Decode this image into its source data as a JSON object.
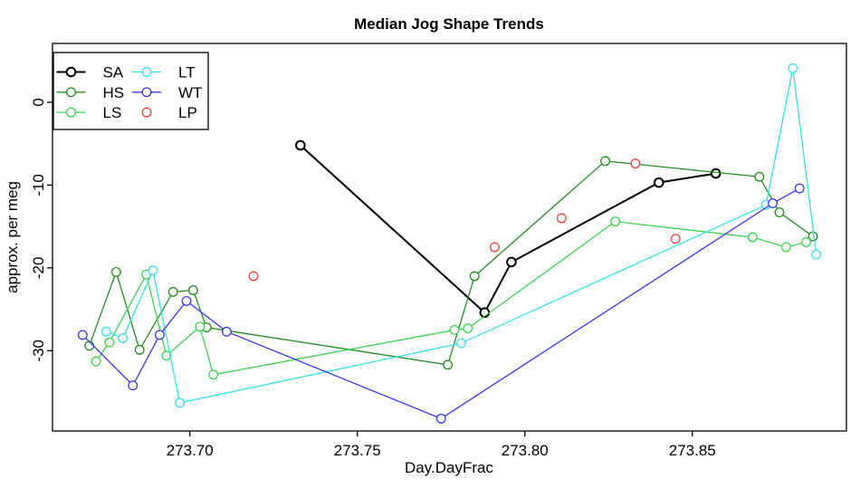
{
  "chart_data": {
    "type": "line",
    "title": "Median Jog Shape Trends",
    "xlabel": "Day.DayFrac",
    "ylabel": "approx. per meg",
    "xlim": [
      273.659,
      273.896
    ],
    "ylim": [
      -39.7,
      7.1
    ],
    "x_ticks": [
      273.7,
      273.75,
      273.8,
      273.85
    ],
    "x_tick_labels": [
      "273.70",
      "273.75",
      "273.80",
      "273.85"
    ],
    "y_ticks": [
      0,
      -10,
      -20,
      -30
    ],
    "y_tick_labels": [
      "0",
      "-10",
      "-20",
      "-30"
    ],
    "grid": false,
    "marker": "open-circle",
    "legend": {
      "position": "top-left",
      "columns": 2,
      "entries": [
        "SA",
        "HS",
        "LS",
        "LT",
        "WT",
        "LP"
      ]
    },
    "series": [
      {
        "name": "SA",
        "color": "#000000",
        "line": true,
        "line_width": 2,
        "points": [
          [
            273.733,
            -5.2
          ],
          [
            273.788,
            -25.4
          ],
          [
            273.796,
            -19.3
          ],
          [
            273.84,
            -9.7
          ],
          [
            273.857,
            -8.6
          ]
        ]
      },
      {
        "name": "HS",
        "color": "#228B22",
        "line": true,
        "line_width": 1.3,
        "points": [
          [
            273.67,
            -29.4
          ],
          [
            273.678,
            -20.5
          ],
          [
            273.685,
            -29.9
          ],
          [
            273.695,
            -22.9
          ],
          [
            273.701,
            -22.7
          ],
          [
            273.705,
            -27.2
          ],
          [
            273.777,
            -31.7
          ],
          [
            273.785,
            -21.0
          ],
          [
            273.824,
            -7.1
          ],
          [
            273.87,
            -9.0
          ],
          [
            273.876,
            -13.3
          ],
          [
            273.886,
            -16.2
          ]
        ]
      },
      {
        "name": "LS",
        "color": "#3BD34F",
        "line": true,
        "line_width": 1.3,
        "points": [
          [
            273.672,
            -31.3
          ],
          [
            273.676,
            -29.0
          ],
          [
            273.687,
            -20.8
          ],
          [
            273.693,
            -30.6
          ],
          [
            273.703,
            -27.1
          ],
          [
            273.707,
            -32.9
          ],
          [
            273.779,
            -27.5
          ],
          [
            273.783,
            -27.3
          ],
          [
            273.827,
            -14.4
          ],
          [
            273.868,
            -16.3
          ],
          [
            273.878,
            -17.5
          ],
          [
            273.884,
            -16.9
          ]
        ]
      },
      {
        "name": "LT",
        "color": "#35E0EA",
        "line": true,
        "line_width": 1.3,
        "points": [
          [
            273.675,
            -27.7
          ],
          [
            273.68,
            -28.5
          ],
          [
            273.689,
            -20.3
          ],
          [
            273.697,
            -36.3
          ],
          [
            273.781,
            -29.1
          ],
          [
            273.872,
            -12.4
          ],
          [
            273.88,
            4.1
          ],
          [
            273.887,
            -18.4
          ]
        ]
      },
      {
        "name": "WT",
        "color": "#3737F0",
        "line": true,
        "line_width": 1.3,
        "points": [
          [
            273.668,
            -28.1
          ],
          [
            273.683,
            -34.2
          ],
          [
            273.691,
            -28.1
          ],
          [
            273.699,
            -24.0
          ],
          [
            273.711,
            -27.7
          ],
          [
            273.775,
            -38.2
          ],
          [
            273.874,
            -12.2
          ],
          [
            273.882,
            -10.4
          ]
        ]
      },
      {
        "name": "LP",
        "color": "#F04038",
        "line": false,
        "line_width": 1.3,
        "points": [
          [
            273.719,
            -21.0
          ],
          [
            273.791,
            -17.5
          ],
          [
            273.811,
            -14.0
          ],
          [
            273.833,
            -7.4
          ],
          [
            273.845,
            -16.5
          ]
        ]
      }
    ]
  }
}
